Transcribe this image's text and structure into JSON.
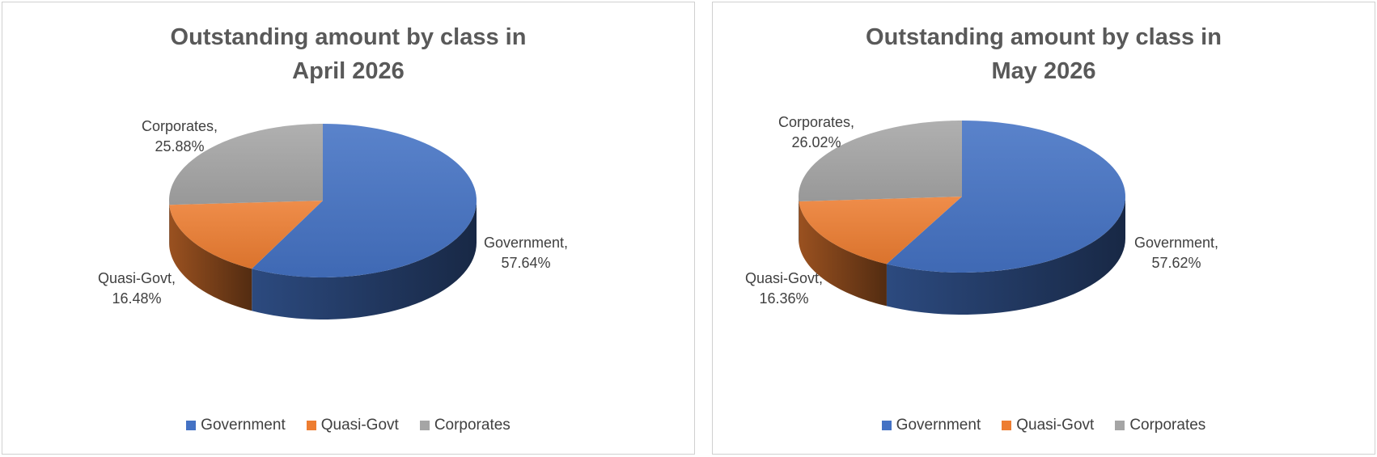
{
  "chart_data": [
    {
      "type": "pie",
      "title": "Outstanding amount by class in April 2026",
      "title_lines": [
        "Outstanding amount by class in",
        "April 2026"
      ],
      "categories": [
        "Government",
        "Quasi-Govt",
        "Corporates"
      ],
      "values": [
        57.64,
        16.48,
        25.88
      ],
      "labels": [
        {
          "name": "Government,",
          "value": "57.64%"
        },
        {
          "name": "Quasi-Govt,",
          "value": "16.48%"
        },
        {
          "name": "Corporates,",
          "value": "25.88%"
        }
      ],
      "unit": "%",
      "style": "3d",
      "legend": "bottom",
      "colors": [
        "#4472C4",
        "#ED7D31",
        "#A5A5A5"
      ]
    },
    {
      "type": "pie",
      "title": "Outstanding amount by class in May 2026",
      "title_lines": [
        "Outstanding amount by class in",
        "May 2026"
      ],
      "categories": [
        "Government",
        "Quasi-Govt",
        "Corporates"
      ],
      "values": [
        57.62,
        16.36,
        26.02
      ],
      "labels": [
        {
          "name": "Government,",
          "value": "57.62%"
        },
        {
          "name": "Quasi-Govt,",
          "value": "16.36%"
        },
        {
          "name": "Corporates,",
          "value": "26.02%"
        }
      ],
      "unit": "%",
      "style": "3d",
      "legend": "bottom",
      "colors": [
        "#4472C4",
        "#ED7D31",
        "#A5A5A5"
      ]
    }
  ]
}
